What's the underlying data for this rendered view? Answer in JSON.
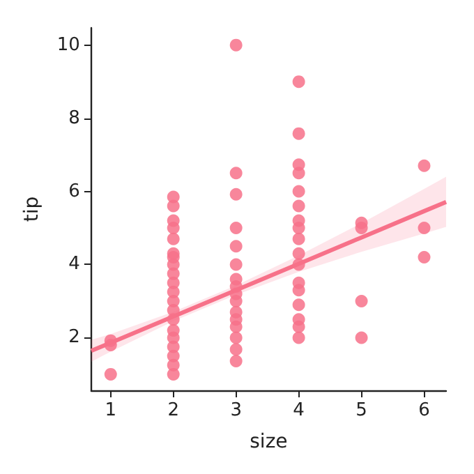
{
  "chart_data": {
    "type": "scatter",
    "xlabel": "size",
    "ylabel": "tip",
    "xlim": [
      0.69,
      6.35
    ],
    "xticks": [
      1,
      2,
      3,
      4,
      5,
      6
    ],
    "ylim": [
      0.56,
      10.47
    ],
    "yticks": [
      2,
      4,
      6,
      8,
      10
    ],
    "grid": false,
    "marker": "circle",
    "series": [
      {
        "type": "scatter",
        "color": "#f77189",
        "x": [
          1,
          1,
          1,
          2,
          2,
          2,
          2,
          2,
          2,
          2,
          2,
          2,
          2,
          2,
          2,
          2,
          2,
          2,
          2,
          2,
          2,
          2,
          2,
          3,
          3,
          3,
          3,
          3,
          3,
          3,
          3,
          3,
          3,
          3,
          3,
          3,
          3,
          3,
          3,
          4,
          4,
          4,
          4,
          4,
          4,
          4,
          4,
          4,
          4,
          4,
          4,
          4,
          4,
          4,
          4,
          4,
          5,
          5,
          5,
          5,
          6,
          6,
          6
        ],
        "values": [
          1.0,
          1.8,
          1.92,
          1.0,
          1.25,
          1.5,
          1.75,
          2.0,
          2.2,
          2.5,
          2.75,
          3.0,
          3.25,
          3.5,
          3.75,
          4.0,
          4.2,
          4.3,
          4.7,
          5.0,
          5.2,
          5.6,
          5.85,
          1.36,
          1.68,
          2.0,
          2.3,
          2.5,
          2.7,
          3.0,
          3.2,
          3.4,
          3.6,
          4.0,
          4.5,
          5.0,
          5.92,
          6.5,
          10.0,
          2.0,
          2.3,
          2.5,
          2.9,
          3.3,
          3.5,
          4.0,
          4.3,
          4.7,
          5.0,
          5.2,
          5.6,
          6.0,
          6.5,
          6.73,
          7.58,
          9.0,
          2.0,
          3.0,
          5.0,
          5.14,
          4.2,
          5.0,
          6.7
        ]
      },
      {
        "type": "line",
        "color": "#f77189",
        "x": [
          0.69,
          1,
          2,
          3,
          4,
          5,
          6,
          6.35
        ],
        "values": [
          1.64,
          1.86,
          2.58,
          3.3,
          4.02,
          4.74,
          5.46,
          5.71
        ],
        "lower": [
          1.34,
          1.62,
          2.45,
          3.17,
          3.8,
          4.35,
          4.85,
          5.03
        ],
        "upper": [
          1.94,
          2.1,
          2.71,
          3.43,
          4.25,
          5.13,
          6.07,
          6.4
        ],
        "line_style": "solid",
        "marker": "none"
      }
    ]
  }
}
